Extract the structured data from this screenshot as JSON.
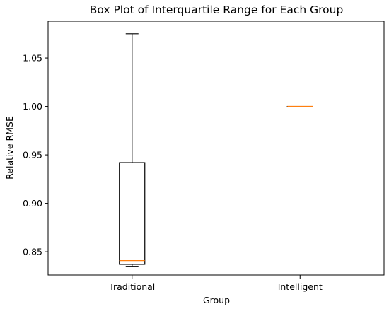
{
  "chart_data": {
    "type": "box",
    "title": "Box Plot of Interquartile Range for Each Group",
    "xlabel": "Group",
    "ylabel": "Relative RMSE",
    "ylim": [
      0.826,
      1.088
    ],
    "yticks": [
      0.85,
      0.9,
      0.95,
      1.0,
      1.05
    ],
    "ytick_labels": [
      "0.85",
      "0.90",
      "0.95",
      "1.00",
      "1.05"
    ],
    "grid": false,
    "legend": "none",
    "categories": [
      "Traditional",
      "Intelligent"
    ],
    "boxes": [
      {
        "category": "Traditional",
        "whisker_low": 0.835,
        "q1": 0.837,
        "median": 0.841,
        "q3": 0.942,
        "whisker_high": 1.075
      },
      {
        "category": "Intelligent",
        "whisker_low": 1.0,
        "q1": 1.0,
        "median": 1.0,
        "q3": 1.0,
        "whisker_high": 1.0
      }
    ],
    "colors": {
      "box": "#000000",
      "median": "#ff7f0e"
    }
  }
}
